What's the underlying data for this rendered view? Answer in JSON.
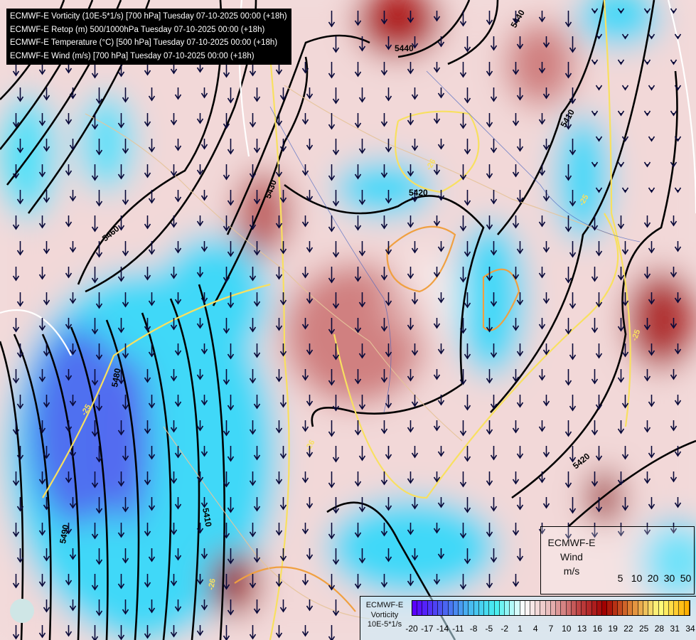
{
  "header": {
    "lines": [
      "ECMWF-E Vorticity (10E-5*1/s) [700 hPa] Tuesday 07-10-2025 00:00 (+18h)",
      "ECMWF-E Retop (m) 500/1000hPa Tuesday 07-10-2025 00:00 (+18h)",
      "ECMWF-E Temperature (°C) [500 hPa] Tuesday 07-10-2025 00:00 (+18h)",
      "ECMWF-E Wind (m/s) [700 hPa] Tuesday 07-10-2025 00:00 (+18h)"
    ]
  },
  "contour_labels": [
    "5410",
    "5420",
    "5430",
    "5440",
    "5460",
    "5480",
    "5490",
    "5410",
    "5420",
    "5440"
  ],
  "temperature_labels": [
    "-25",
    "-26",
    "-26",
    "-25",
    "-25",
    "-26"
  ],
  "wind_legend": {
    "lines": [
      "ECMWF-E",
      "Wind",
      "m/s"
    ],
    "values": [
      "5",
      "10",
      "20",
      "30",
      "50"
    ],
    "arrow_color": "#0a0a3a"
  },
  "colorbar": {
    "lines": [
      "ECMWF-E",
      "Vorticity",
      "10E-5*1/s"
    ],
    "min": -20,
    "max": 34,
    "ticks": [
      "-20",
      "-17",
      "-14",
      "-11",
      "-8",
      "-5",
      "-2",
      "1",
      "4",
      "7",
      "10",
      "13",
      "16",
      "19",
      "22",
      "25",
      "28",
      "31",
      "34"
    ],
    "stops": [
      "#5a00ff",
      "#4a58f0",
      "#48b8f0",
      "#48f0f0",
      "#ffffff",
      "#e8b8b8",
      "#c04848",
      "#a00000",
      "#e08838",
      "#ffff80",
      "#ffb000"
    ]
  },
  "colors": {
    "contour": "#000000",
    "temperature": "#f8e060",
    "border": "#e6c49a",
    "river": "#4060c0"
  }
}
